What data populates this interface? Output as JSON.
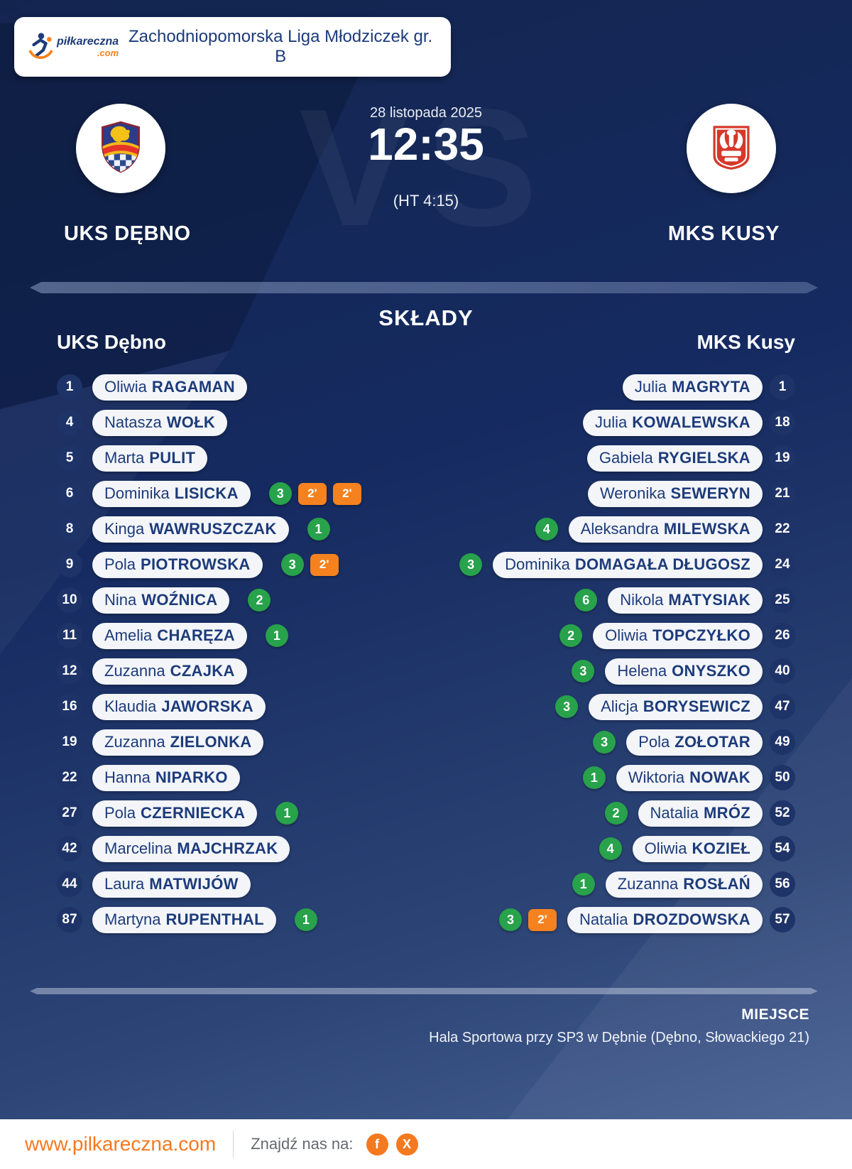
{
  "header": {
    "logo": {
      "brand": "piłkareczna",
      "tld": ".com"
    },
    "league_title": "Zachodniopomorska Liga Młodziczek gr. B"
  },
  "match": {
    "date": "28 listopada 2025",
    "score": "12:35",
    "halftime": "(HT 4:15)",
    "vs_watermark": "VS",
    "home_team": "UKS DĘBNO",
    "away_team": "MKS KUSY"
  },
  "lineups": {
    "section_title": "SKŁADY",
    "home_header": "UKS Dębno",
    "away_header": "MKS Kusy",
    "home_players": [
      {
        "number": "1",
        "first": "Oliwia",
        "last": "RAGAMAN",
        "goals": null,
        "cards": []
      },
      {
        "number": "4",
        "first": "Natasza",
        "last": "WOŁK",
        "goals": null,
        "cards": []
      },
      {
        "number": "5",
        "first": "Marta",
        "last": "PULIT",
        "goals": null,
        "cards": []
      },
      {
        "number": "6",
        "first": "Dominika",
        "last": "LISICKA",
        "goals": 3,
        "cards": [
          "2'",
          "2'"
        ]
      },
      {
        "number": "8",
        "first": "Kinga",
        "last": "WAWRUSZCZAK",
        "goals": 1,
        "cards": []
      },
      {
        "number": "9",
        "first": "Pola",
        "last": "PIOTROWSKA",
        "goals": 3,
        "cards": [
          "2'"
        ]
      },
      {
        "number": "10",
        "first": "Nina",
        "last": "WOŹNICA",
        "goals": 2,
        "cards": []
      },
      {
        "number": "11",
        "first": "Amelia",
        "last": "CHARĘZA",
        "goals": 1,
        "cards": []
      },
      {
        "number": "12",
        "first": "Zuzanna",
        "last": "CZAJKA",
        "goals": null,
        "cards": []
      },
      {
        "number": "16",
        "first": "Klaudia",
        "last": "JAWORSKA",
        "goals": null,
        "cards": []
      },
      {
        "number": "19",
        "first": "Zuzanna",
        "last": "ZIELONKA",
        "goals": null,
        "cards": []
      },
      {
        "number": "22",
        "first": "Hanna",
        "last": "NIPARKO",
        "goals": null,
        "cards": []
      },
      {
        "number": "27",
        "first": "Pola",
        "last": "CZERNIECKA",
        "goals": 1,
        "cards": []
      },
      {
        "number": "42",
        "first": "Marcelina",
        "last": "MAJCHRZAK",
        "goals": null,
        "cards": []
      },
      {
        "number": "44",
        "first": "Laura",
        "last": "MATWIJÓW",
        "goals": null,
        "cards": []
      },
      {
        "number": "87",
        "first": "Martyna",
        "last": "RUPENTHAL",
        "goals": 1,
        "cards": []
      }
    ],
    "away_players": [
      {
        "number": "1",
        "first": "Julia",
        "last": "MAGRYTA",
        "goals": null,
        "cards": []
      },
      {
        "number": "18",
        "first": "Julia",
        "last": "KOWALEWSKA",
        "goals": null,
        "cards": []
      },
      {
        "number": "19",
        "first": "Gabiela",
        "last": "RYGIELSKA",
        "goals": null,
        "cards": []
      },
      {
        "number": "21",
        "first": "Weronika",
        "last": "SEWERYN",
        "goals": null,
        "cards": []
      },
      {
        "number": "22",
        "first": "Aleksandra",
        "last": "MILEWSKA",
        "goals": 4,
        "cards": []
      },
      {
        "number": "24",
        "first": "Dominika",
        "last": "DOMAGAŁA DŁUGOSZ",
        "goals": 3,
        "cards": []
      },
      {
        "number": "25",
        "first": "Nikola",
        "last": "MATYSIAK",
        "goals": 6,
        "cards": []
      },
      {
        "number": "26",
        "first": "Oliwia",
        "last": "TOPCZYŁKO",
        "goals": 2,
        "cards": []
      },
      {
        "number": "40",
        "first": "Helena",
        "last": "ONYSZKO",
        "goals": 3,
        "cards": []
      },
      {
        "number": "47",
        "first": "Alicja",
        "last": "BORYSEWICZ",
        "goals": 3,
        "cards": []
      },
      {
        "number": "49",
        "first": "Pola",
        "last": "ZOŁOTAR",
        "goals": 3,
        "cards": []
      },
      {
        "number": "50",
        "first": "Wiktoria",
        "last": "NOWAK",
        "goals": 1,
        "cards": []
      },
      {
        "number": "52",
        "first": "Natalia",
        "last": "MRÓZ",
        "goals": 2,
        "cards": []
      },
      {
        "number": "54",
        "first": "Oliwia",
        "last": "KOZIEŁ",
        "goals": 4,
        "cards": []
      },
      {
        "number": "56",
        "first": "Zuzanna",
        "last": "ROSŁAŃ",
        "goals": 1,
        "cards": []
      },
      {
        "number": "57",
        "first": "Natalia",
        "last": "DROZDOWSKA",
        "goals": 3,
        "cards": [
          "2'"
        ]
      }
    ]
  },
  "venue": {
    "label": "MIEJSCE",
    "value": "Hala Sportowa przy SP3 w Dębnie (Dębno, Słowackiego 21)"
  },
  "footer": {
    "website": "www.pilkareczna.com",
    "find_us_label": "Znajdź nas na:",
    "social": [
      {
        "name": "facebook",
        "glyph": "f"
      },
      {
        "name": "x",
        "glyph": "X"
      }
    ]
  },
  "colors": {
    "accent_orange": "#f5821f",
    "goal_green": "#28a24b",
    "navy_background": "#15285c",
    "pill_text": "#1d3b7a"
  }
}
